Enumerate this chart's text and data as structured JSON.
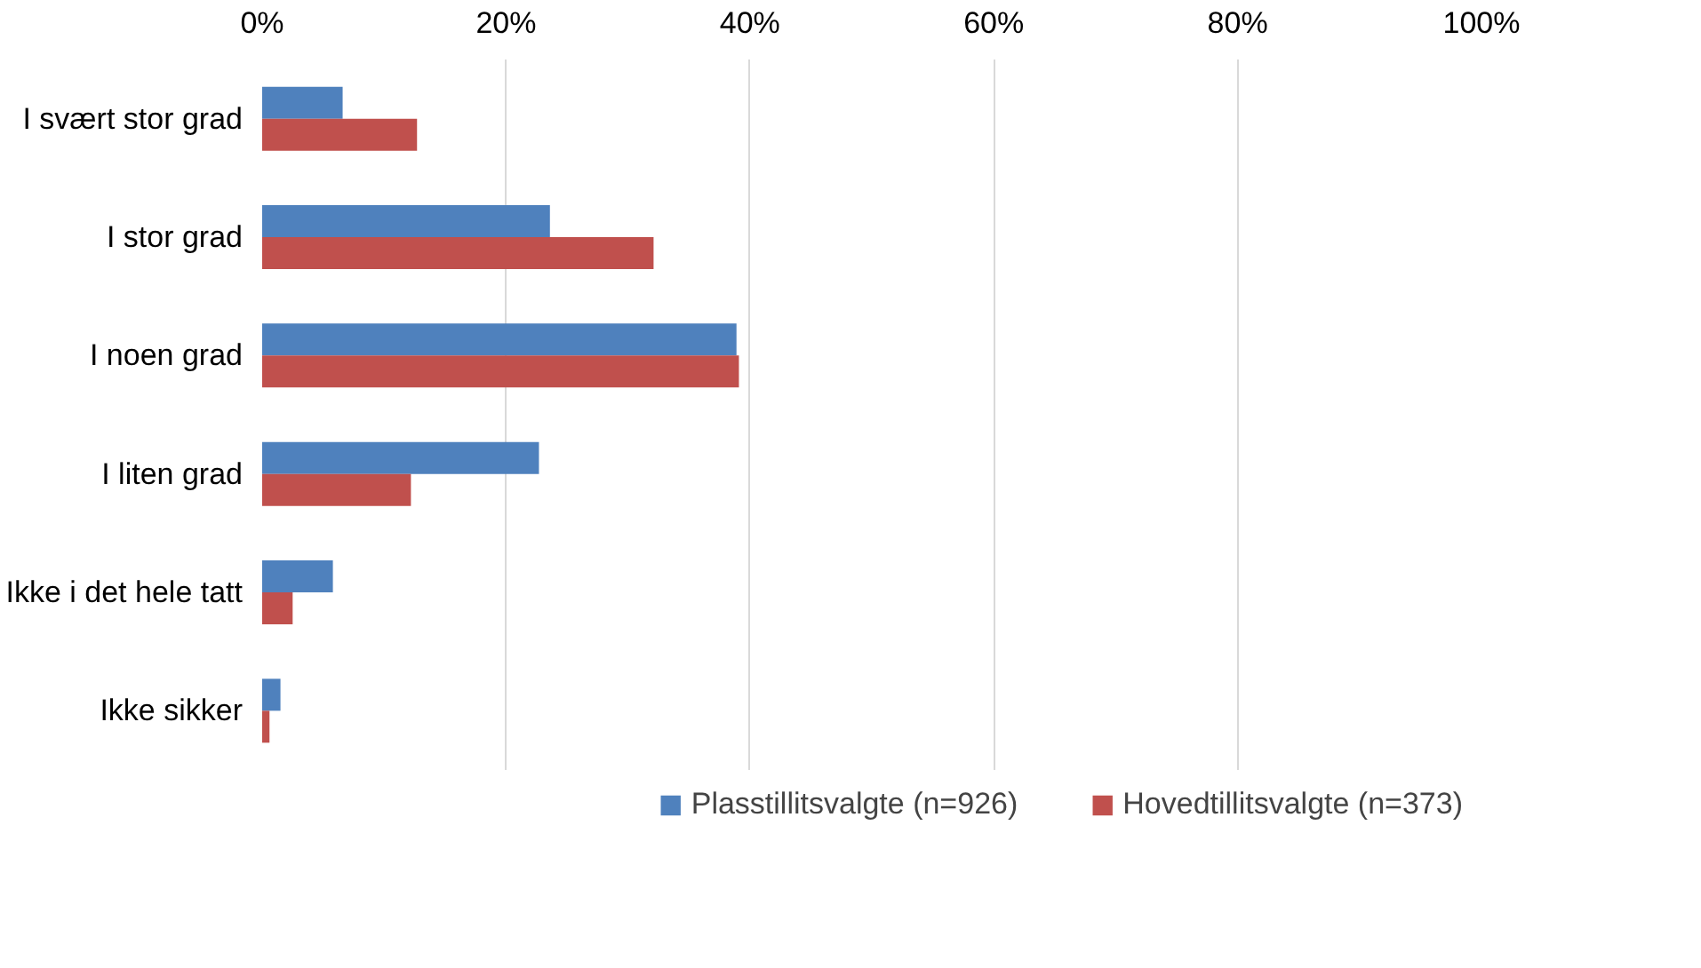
{
  "chart_data": {
    "type": "bar",
    "orientation": "horizontal",
    "categories": [
      "I svært stor grad",
      "I stor grad",
      "I noen grad",
      "I liten grad",
      "Ikke i det hele tatt",
      "Ikke sikker"
    ],
    "series": [
      {
        "name": "Plasstillitsvalgte (n=926)",
        "color": "#4f81bd",
        "values": [
          6.6,
          23.6,
          38.9,
          22.7,
          5.8,
          1.5
        ]
      },
      {
        "name": "Hovedtillitsvalgte (n=373)",
        "color": "#c0504d",
        "values": [
          12.7,
          32.1,
          39.1,
          12.2,
          2.5,
          0.6
        ]
      }
    ],
    "xlim": [
      0,
      100
    ],
    "xticks": [
      {
        "value": 0,
        "label": "0%"
      },
      {
        "value": 20,
        "label": "20%"
      },
      {
        "value": 40,
        "label": "40%"
      },
      {
        "value": 60,
        "label": "60%"
      },
      {
        "value": 80,
        "label": "80%"
      },
      {
        "value": 100,
        "label": "100%"
      }
    ],
    "grid": "x",
    "legend": "bottom"
  }
}
